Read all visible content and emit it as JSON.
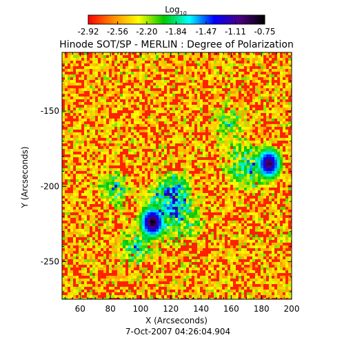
{
  "chart_data": {
    "type": "heatmap",
    "title": "Hinode SOT/SP - MERLIN : Degree of Polarization",
    "subtitle": "7-Oct-2007 04:26:04.904",
    "xlabel": "X (Arcseconds)",
    "ylabel": "Y (Arcseconds)",
    "xlim": [
      48,
      200
    ],
    "ylim": [
      -275,
      -111
    ],
    "x_ticks": [
      60,
      80,
      100,
      120,
      140,
      160,
      180,
      200
    ],
    "y_ticks": [
      -150,
      -200,
      -250
    ],
    "colorbar": {
      "label_base": "Log",
      "label_sub": "10",
      "ticks": [
        "-2.92",
        "-2.56",
        "-2.20",
        "-1.84",
        "-1.47",
        "-1.11",
        "-0.75"
      ],
      "range": [
        -2.92,
        -0.75
      ],
      "colors": [
        "#ff0000",
        "#ff8c00",
        "#ffff00",
        "#00c800",
        "#00ffff",
        "#0000ff",
        "#4b0082",
        "#000000"
      ]
    },
    "features": [
      {
        "x": 107,
        "y": -223,
        "value": -0.75
      },
      {
        "x": 184,
        "y": -184,
        "value": -0.9
      }
    ]
  }
}
